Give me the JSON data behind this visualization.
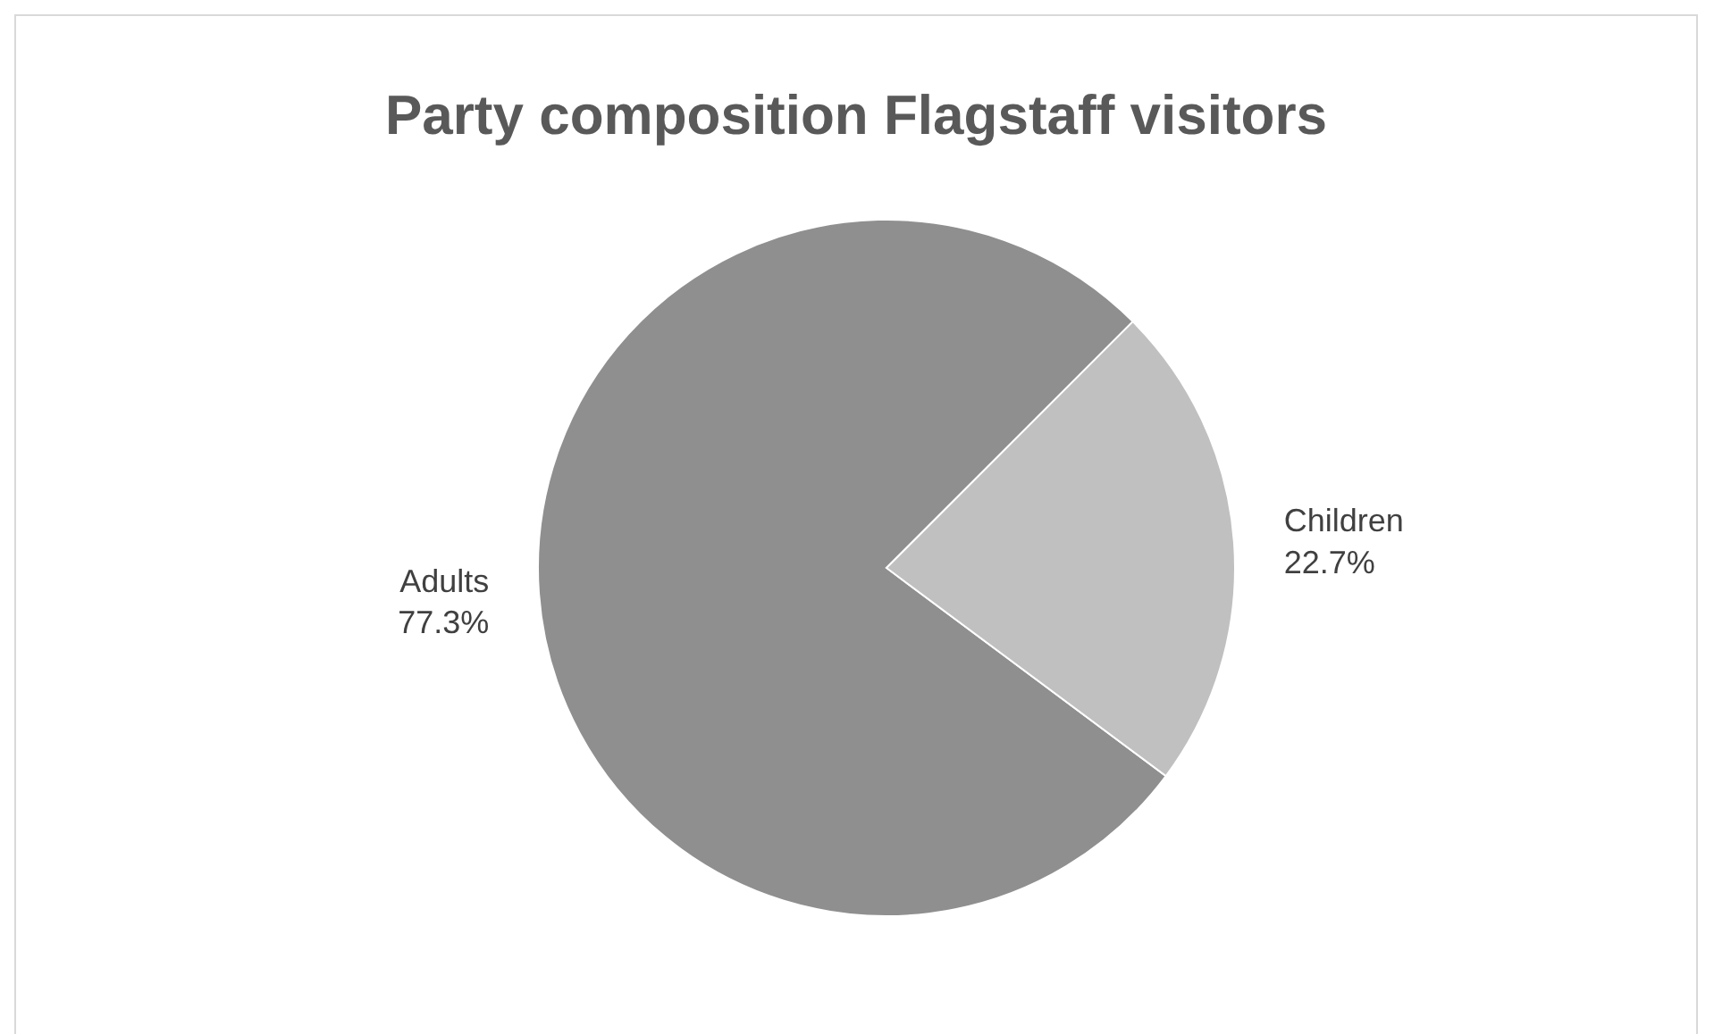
{
  "chart_data": {
    "type": "pie",
    "title": "Party composition Flagstaff visitors",
    "categories": [
      "Adults",
      "Children"
    ],
    "values": [
      77.3,
      22.7
    ],
    "colors": [
      "#8f8f8f",
      "#c0c0c0"
    ],
    "value_labels": [
      "77.3%",
      "22.7%"
    ],
    "legend": false
  }
}
